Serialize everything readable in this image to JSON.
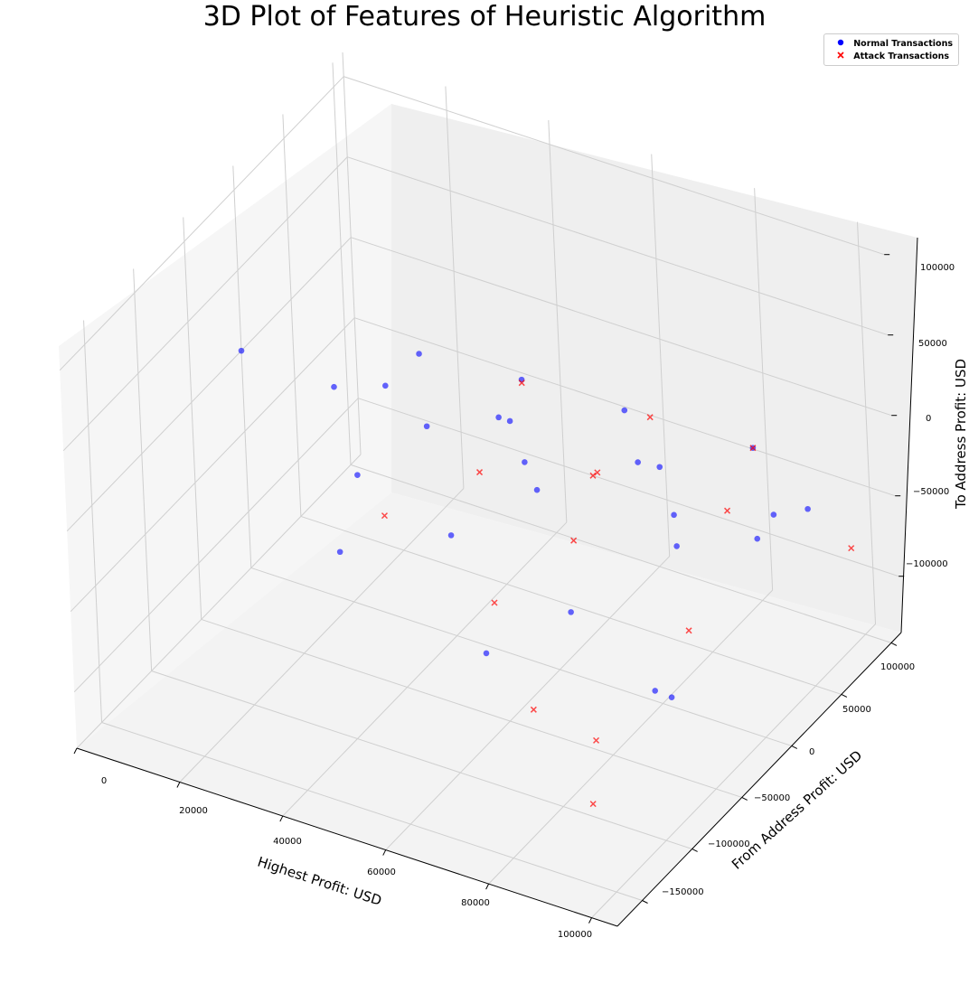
{
  "chart_data": {
    "type": "scatter",
    "title": "3D Plot of Features of Heuristic Algorithm",
    "xlabel": "Highest Profit: USD",
    "ylabel": "From Address Profit: USD",
    "zlabel": "To Address Profit: USD",
    "x_ticks": [
      "0",
      "20000",
      "40000",
      "60000",
      "80000",
      "100000"
    ],
    "y_ticks": [
      "−150000",
      "−100000",
      "−50000",
      "0",
      "50000",
      "100000"
    ],
    "z_ticks": [
      "−100000",
      "−50000",
      "0",
      "50000",
      "100000"
    ],
    "xlim": [
      0,
      105000
    ],
    "ylim": [
      -175000,
      110000
    ],
    "zlim": [
      -135000,
      115000
    ],
    "grid": true,
    "legend_position": "top-right",
    "series": [
      {
        "name": "Normal Transactions",
        "marker": "circle",
        "color": "#0000ff",
        "points": [
          [
            0,
            0,
            0
          ],
          [
            35000,
            0,
            35000
          ],
          [
            55000,
            0,
            40000
          ],
          [
            75000,
            0,
            42000
          ],
          [
            100000,
            0,
            45000
          ],
          [
            20000,
            -10000,
            5000
          ],
          [
            40000,
            -20000,
            8000
          ],
          [
            60000,
            -25000,
            10000
          ],
          [
            90000,
            -30000,
            12000
          ],
          [
            25000,
            15000,
            -5000
          ],
          [
            45000,
            25000,
            -10000
          ],
          [
            70000,
            35000,
            -18000
          ],
          [
            100000,
            50000,
            -25000
          ],
          [
            30000,
            -40000,
            -20000
          ],
          [
            50000,
            -50000,
            -30000
          ],
          [
            75000,
            -60000,
            -45000
          ],
          [
            95000,
            -80000,
            -60000
          ],
          [
            40000,
            60000,
            -40000
          ],
          [
            65000,
            80000,
            -55000
          ],
          [
            85000,
            90000,
            -70000
          ],
          [
            30000,
            -60000,
            -55000
          ],
          [
            60000,
            -70000,
            -80000
          ],
          [
            90000,
            -40000,
            -95000
          ],
          [
            55000,
            10000,
            -35000
          ],
          [
            80000,
            20000,
            -50000
          ],
          [
            98000,
            10000,
            -20000
          ]
        ]
      },
      {
        "name": "Attack Transactions",
        "marker": "x",
        "color": "#ff0000",
        "points": [
          [
            55000,
            0,
            38000
          ],
          [
            80000,
            0,
            43000
          ],
          [
            100000,
            0,
            45000
          ],
          [
            50000,
            -20000,
            -10000
          ],
          [
            70000,
            -30000,
            -25000
          ],
          [
            95000,
            -45000,
            -45000
          ],
          [
            35000,
            -40000,
            -40000
          ],
          [
            60000,
            -60000,
            -55000
          ],
          [
            85000,
            -90000,
            -95000
          ],
          [
            60000,
            40000,
            -40000
          ],
          [
            80000,
            70000,
            -60000
          ],
          [
            100000,
            90000,
            -75000
          ],
          [
            75000,
            -100000,
            -80000
          ],
          [
            90000,
            -120000,
            -110000
          ],
          [
            65000,
            20000,
            -20000
          ]
        ]
      }
    ]
  }
}
